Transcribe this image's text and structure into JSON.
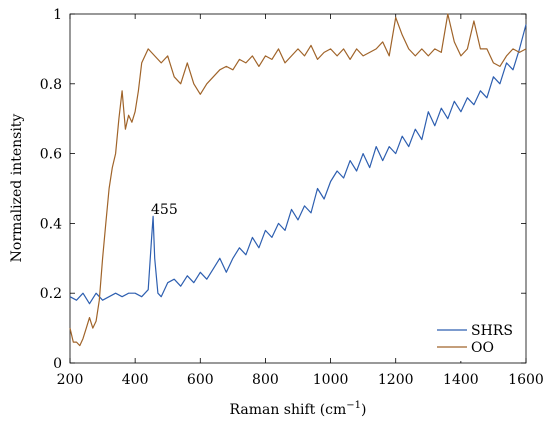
{
  "chart_data": {
    "type": "line",
    "xlabel": "Raman shift (cm",
    "xlabel_sup": "−1",
    "xlabel_close": ")",
    "ylabel": "Normalized intensity",
    "xlim": [
      200,
      1600
    ],
    "ylim": [
      0,
      1
    ],
    "xticks": [
      200,
      400,
      600,
      800,
      1000,
      1200,
      1400,
      1600
    ],
    "yticks": [
      0,
      0.2,
      0.4,
      0.6,
      0.8,
      1
    ],
    "ytick_labels": [
      "0",
      "0.2",
      "0.4",
      "0.6",
      "0.8",
      "1"
    ],
    "grid": false,
    "legend_position": "bottom-right",
    "annotations": [
      {
        "text": "455",
        "x": 455,
        "y": 0.42
      }
    ],
    "series": [
      {
        "name": "SHRS",
        "color": "#2e5fb0",
        "x": [
          200,
          220,
          240,
          260,
          280,
          300,
          320,
          340,
          360,
          380,
          400,
          420,
          440,
          450,
          455,
          460,
          470,
          480,
          500,
          520,
          540,
          560,
          580,
          600,
          620,
          640,
          660,
          680,
          700,
          720,
          740,
          760,
          780,
          800,
          820,
          840,
          860,
          880,
          900,
          920,
          940,
          960,
          980,
          1000,
          1020,
          1040,
          1060,
          1080,
          1100,
          1120,
          1140,
          1160,
          1180,
          1200,
          1220,
          1240,
          1260,
          1280,
          1300,
          1320,
          1340,
          1360,
          1380,
          1400,
          1420,
          1440,
          1460,
          1480,
          1500,
          1520,
          1540,
          1560,
          1580,
          1600
        ],
        "y": [
          0.19,
          0.18,
          0.2,
          0.17,
          0.2,
          0.18,
          0.19,
          0.2,
          0.19,
          0.2,
          0.2,
          0.19,
          0.21,
          0.35,
          0.42,
          0.3,
          0.2,
          0.19,
          0.23,
          0.24,
          0.22,
          0.25,
          0.23,
          0.26,
          0.24,
          0.27,
          0.3,
          0.26,
          0.3,
          0.33,
          0.31,
          0.36,
          0.33,
          0.38,
          0.36,
          0.4,
          0.38,
          0.44,
          0.41,
          0.45,
          0.43,
          0.5,
          0.47,
          0.52,
          0.55,
          0.53,
          0.58,
          0.55,
          0.6,
          0.56,
          0.62,
          0.58,
          0.62,
          0.6,
          0.65,
          0.62,
          0.67,
          0.64,
          0.72,
          0.68,
          0.73,
          0.7,
          0.75,
          0.72,
          0.76,
          0.74,
          0.78,
          0.76,
          0.82,
          0.8,
          0.86,
          0.84,
          0.9,
          0.97
        ]
      },
      {
        "name": "OO",
        "color": "#a0642a",
        "x": [
          200,
          210,
          220,
          230,
          240,
          250,
          260,
          270,
          280,
          290,
          300,
          310,
          320,
          330,
          340,
          350,
          360,
          370,
          380,
          390,
          400,
          410,
          420,
          440,
          460,
          480,
          500,
          520,
          540,
          560,
          580,
          600,
          620,
          640,
          660,
          680,
          700,
          720,
          740,
          760,
          780,
          800,
          820,
          840,
          860,
          880,
          900,
          920,
          940,
          960,
          980,
          1000,
          1020,
          1040,
          1060,
          1080,
          1100,
          1120,
          1140,
          1160,
          1180,
          1200,
          1220,
          1240,
          1260,
          1280,
          1300,
          1320,
          1340,
          1360,
          1380,
          1400,
          1420,
          1440,
          1460,
          1480,
          1500,
          1520,
          1540,
          1560,
          1580,
          1600
        ],
        "y": [
          0.1,
          0.06,
          0.06,
          0.05,
          0.07,
          0.1,
          0.13,
          0.1,
          0.12,
          0.18,
          0.3,
          0.4,
          0.5,
          0.56,
          0.6,
          0.7,
          0.78,
          0.67,
          0.71,
          0.69,
          0.72,
          0.78,
          0.86,
          0.9,
          0.88,
          0.86,
          0.88,
          0.82,
          0.8,
          0.86,
          0.8,
          0.77,
          0.8,
          0.82,
          0.84,
          0.85,
          0.84,
          0.87,
          0.86,
          0.88,
          0.85,
          0.88,
          0.87,
          0.9,
          0.86,
          0.88,
          0.9,
          0.88,
          0.91,
          0.87,
          0.89,
          0.9,
          0.88,
          0.9,
          0.87,
          0.9,
          0.88,
          0.89,
          0.9,
          0.92,
          0.88,
          0.99,
          0.94,
          0.9,
          0.88,
          0.9,
          0.88,
          0.9,
          0.89,
          1.0,
          0.92,
          0.88,
          0.9,
          0.98,
          0.9,
          0.9,
          0.86,
          0.85,
          0.88,
          0.9,
          0.89,
          0.9
        ]
      }
    ]
  }
}
